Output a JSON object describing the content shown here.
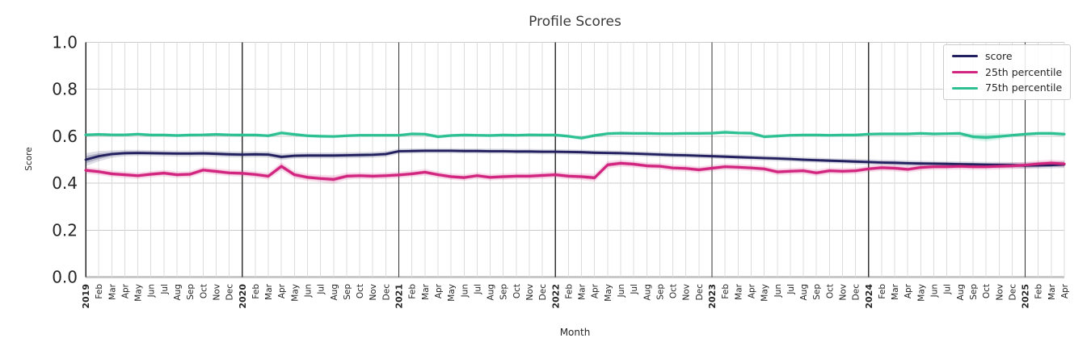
{
  "chart_data": {
    "type": "line",
    "title": "Profile Scores",
    "xlabel": "Month",
    "ylabel": "Score",
    "ylim": [
      0.0,
      1.0
    ],
    "yticks": [
      0.0,
      0.2,
      0.4,
      0.6,
      0.8,
      1.0
    ],
    "grid": true,
    "legend_position": "upper right",
    "x_tick_labels": [
      "2019",
      "Feb",
      "Mar",
      "Apr",
      "May",
      "Jun",
      "Jul",
      "Aug",
      "Sep",
      "Oct",
      "Nov",
      "Dec",
      "2020",
      "Feb",
      "Mar",
      "Apr",
      "May",
      "Jun",
      "Jul",
      "Aug",
      "Sep",
      "Oct",
      "Nov",
      "Dec",
      "2021",
      "Feb",
      "Mar",
      "Apr",
      "May",
      "Jun",
      "Jul",
      "Aug",
      "Sep",
      "Oct",
      "Nov",
      "Dec",
      "2022",
      "Feb",
      "Mar",
      "Apr",
      "May",
      "Jun",
      "Jul",
      "Aug",
      "Sep",
      "Oct",
      "Nov",
      "Dec",
      "2023",
      "Feb",
      "Mar",
      "Apr",
      "May",
      "Jun",
      "Jul",
      "Aug",
      "Sep",
      "Oct",
      "Nov",
      "Dec",
      "2024",
      "Feb",
      "Mar",
      "Apr",
      "May",
      "Jun",
      "Jul",
      "Aug",
      "Sep",
      "Oct",
      "Nov",
      "Dec",
      "2025",
      "Feb",
      "Mar",
      "Apr"
    ],
    "series": [
      {
        "name": "score",
        "color": "#23205f",
        "values": [
          0.5,
          0.515,
          0.524,
          0.528,
          0.529,
          0.528,
          0.527,
          0.526,
          0.526,
          0.527,
          0.525,
          0.523,
          0.522,
          0.523,
          0.522,
          0.512,
          0.517,
          0.518,
          0.518,
          0.518,
          0.519,
          0.52,
          0.521,
          0.524,
          0.536,
          0.537,
          0.538,
          0.538,
          0.538,
          0.537,
          0.537,
          0.536,
          0.536,
          0.535,
          0.535,
          0.534,
          0.534,
          0.533,
          0.532,
          0.53,
          0.529,
          0.528,
          0.526,
          0.524,
          0.522,
          0.52,
          0.519,
          0.517,
          0.515,
          0.513,
          0.511,
          0.509,
          0.507,
          0.505,
          0.503,
          0.5,
          0.498,
          0.496,
          0.494,
          0.492,
          0.49,
          0.488,
          0.487,
          0.485,
          0.484,
          0.483,
          0.482,
          0.481,
          0.48,
          0.479,
          0.478,
          0.477,
          0.475,
          0.476,
          0.477,
          0.48
        ],
        "ci": [
          0.028,
          0.022,
          0.016,
          0.014,
          0.013,
          0.013,
          0.013,
          0.013,
          0.013,
          0.013,
          0.013,
          0.013,
          0.013,
          0.013,
          0.013,
          0.014,
          0.013,
          0.013,
          0.013,
          0.013,
          0.013,
          0.013,
          0.013,
          0.013,
          0.011,
          0.011,
          0.011,
          0.011,
          0.011,
          0.011,
          0.011,
          0.011,
          0.011,
          0.011,
          0.011,
          0.011,
          0.011,
          0.011,
          0.011,
          0.011,
          0.011,
          0.011,
          0.011,
          0.011,
          0.011,
          0.011,
          0.011,
          0.011,
          0.011,
          0.011,
          0.011,
          0.011,
          0.011,
          0.011,
          0.011,
          0.011,
          0.011,
          0.011,
          0.011,
          0.012,
          0.012,
          0.012,
          0.012,
          0.012,
          0.012,
          0.012,
          0.012,
          0.012,
          0.012,
          0.012,
          0.013,
          0.013,
          0.014,
          0.014,
          0.014,
          0.015
        ]
      },
      {
        "name": "25th percentile",
        "color": "#d2257f",
        "values": [
          0.455,
          0.449,
          0.44,
          0.436,
          0.432,
          0.438,
          0.443,
          0.436,
          0.438,
          0.456,
          0.45,
          0.444,
          0.442,
          0.437,
          0.43,
          0.472,
          0.436,
          0.425,
          0.42,
          0.416,
          0.43,
          0.432,
          0.43,
          0.432,
          0.435,
          0.44,
          0.447,
          0.436,
          0.428,
          0.424,
          0.432,
          0.425,
          0.428,
          0.43,
          0.43,
          0.433,
          0.436,
          0.43,
          0.428,
          0.423,
          0.478,
          0.485,
          0.481,
          0.474,
          0.472,
          0.465,
          0.463,
          0.457,
          0.464,
          0.47,
          0.468,
          0.465,
          0.461,
          0.448,
          0.451,
          0.453,
          0.444,
          0.453,
          0.451,
          0.453,
          0.461,
          0.466,
          0.464,
          0.459,
          0.467,
          0.47,
          0.47,
          0.472,
          0.47,
          0.47,
          0.472,
          0.474,
          0.477,
          0.482,
          0.486,
          0.482
        ],
        "ci": [
          0.015,
          0.014,
          0.014,
          0.014,
          0.014,
          0.014,
          0.014,
          0.014,
          0.014,
          0.014,
          0.014,
          0.014,
          0.014,
          0.014,
          0.015,
          0.018,
          0.016,
          0.015,
          0.016,
          0.018,
          0.015,
          0.014,
          0.014,
          0.014,
          0.014,
          0.014,
          0.014,
          0.014,
          0.014,
          0.014,
          0.014,
          0.014,
          0.014,
          0.014,
          0.014,
          0.014,
          0.014,
          0.014,
          0.015,
          0.017,
          0.016,
          0.015,
          0.014,
          0.014,
          0.014,
          0.014,
          0.014,
          0.014,
          0.014,
          0.014,
          0.014,
          0.014,
          0.014,
          0.014,
          0.014,
          0.014,
          0.014,
          0.014,
          0.014,
          0.014,
          0.014,
          0.014,
          0.014,
          0.014,
          0.014,
          0.014,
          0.014,
          0.014,
          0.014,
          0.014,
          0.014,
          0.014,
          0.014,
          0.015,
          0.015,
          0.015
        ]
      },
      {
        "name": "75th percentile",
        "color": "#2cc092",
        "values": [
          0.606,
          0.608,
          0.606,
          0.606,
          0.609,
          0.605,
          0.605,
          0.603,
          0.605,
          0.606,
          0.608,
          0.606,
          0.605,
          0.605,
          0.602,
          0.614,
          0.608,
          0.602,
          0.6,
          0.599,
          0.602,
          0.604,
          0.604,
          0.604,
          0.604,
          0.61,
          0.609,
          0.598,
          0.603,
          0.605,
          0.604,
          0.603,
          0.605,
          0.604,
          0.606,
          0.605,
          0.605,
          0.6,
          0.592,
          0.603,
          0.611,
          0.613,
          0.612,
          0.612,
          0.611,
          0.611,
          0.612,
          0.612,
          0.613,
          0.617,
          0.614,
          0.613,
          0.598,
          0.601,
          0.604,
          0.605,
          0.605,
          0.604,
          0.605,
          0.605,
          0.609,
          0.61,
          0.61,
          0.61,
          0.612,
          0.61,
          0.611,
          0.612,
          0.598,
          0.595,
          0.599,
          0.604,
          0.609,
          0.612,
          0.612,
          0.609
        ],
        "ci": [
          0.007,
          0.007,
          0.007,
          0.007,
          0.007,
          0.007,
          0.007,
          0.007,
          0.007,
          0.007,
          0.007,
          0.007,
          0.007,
          0.007,
          0.008,
          0.01,
          0.008,
          0.008,
          0.008,
          0.008,
          0.007,
          0.007,
          0.007,
          0.007,
          0.007,
          0.008,
          0.008,
          0.009,
          0.007,
          0.007,
          0.007,
          0.007,
          0.007,
          0.007,
          0.007,
          0.007,
          0.007,
          0.008,
          0.009,
          0.008,
          0.008,
          0.007,
          0.007,
          0.007,
          0.007,
          0.007,
          0.007,
          0.007,
          0.008,
          0.01,
          0.008,
          0.008,
          0.009,
          0.008,
          0.007,
          0.007,
          0.007,
          0.007,
          0.007,
          0.007,
          0.007,
          0.007,
          0.007,
          0.007,
          0.007,
          0.007,
          0.007,
          0.008,
          0.014,
          0.018,
          0.014,
          0.009,
          0.008,
          0.008,
          0.009,
          0.01
        ]
      }
    ],
    "colors": {
      "background": "#ffffff",
      "grid_month": "#dcdcdc",
      "grid_horizontal": "#cccccc",
      "baseline": "#c8c8c8",
      "year_line": "#333333",
      "spine": "#262626",
      "tick_text": "#262626",
      "title_text": "#3a3a3a"
    }
  }
}
